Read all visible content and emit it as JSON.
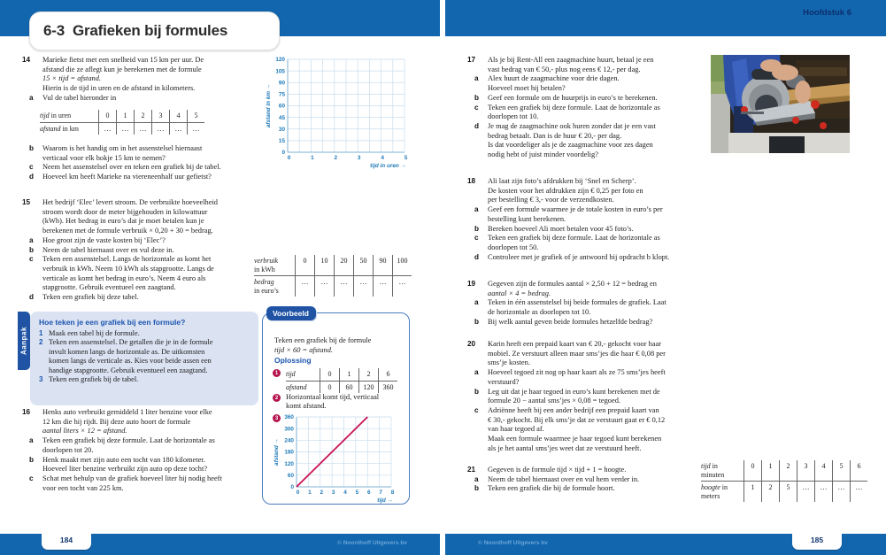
{
  "meta": {
    "chapter": "Hoofdstuk 6",
    "section_number": "6-3",
    "section_title": "Grafieken bij formules",
    "copyright": "© Noordhoff Uitgevers bv",
    "page_left": "184",
    "page_right": "185"
  },
  "problems": {
    "p14a": {
      "rows": [
        [
          "14",
          "Marieke fietst met een snelheid van 15 km per uur. De"
        ],
        [
          "",
          "afstand die ze aflegt kun je berekenen met de formule"
        ],
        [
          "",
          "15 × tijd = afstand.",
          1
        ],
        [
          "",
          "Hierin is de tijd in uren en de afstand in kilometers."
        ],
        [
          "a",
          "Vul de tabel hieronder in"
        ]
      ]
    },
    "p14b": {
      "rows": [
        [
          "b",
          "Waarom is het handig om in het assenstelsel hiernaast"
        ],
        [
          "",
          "verticaal voor elk hokje 15 km te nemen?"
        ],
        [
          "c",
          "Neem het assenstelsel over en teken een grafiek bij de tabel."
        ],
        [
          "d",
          "Hoeveel km heeft Marieke na viereneenhalf uur gefietst?"
        ]
      ]
    },
    "p15": {
      "rows": [
        [
          "15",
          "Het bedrijf ‘Elec’ levert stroom. De verbruikte hoeveelheid"
        ],
        [
          "",
          "stroom wordt door de meter bijgehouden in kilowattuur"
        ],
        [
          "",
          "(kWh). Het bedrag in euro’s dat je moet betalen kun je"
        ],
        [
          "",
          "berekenen met de formule verbruik × 0,20 + 30 = bedrag."
        ],
        [
          "a",
          "Hoe groot zijn de vaste kosten bij ‘Elec’?"
        ],
        [
          "b",
          "Neem de tabel hiernaast over en vul deze in."
        ],
        [
          "c",
          "Teken een assenstelsel. Langs de horizontale as komt het"
        ],
        [
          "",
          "verbruik in kWh. Neem 10 kWh als stapgrootte. Langs de"
        ],
        [
          "",
          "verticale as komt het bedrag in euro’s. Neem 4 euro als"
        ],
        [
          "",
          "stapgrootte. Gebruik eventueel een zaagtand."
        ],
        [
          "d",
          "Teken een grafiek bij deze tabel."
        ]
      ]
    },
    "p16": {
      "rows": [
        [
          "16",
          "Henks auto verbruikt gemiddeld 1 liter benzine voor elke"
        ],
        [
          "",
          "12 km die hij rijdt. Bij deze auto hoort de formule"
        ],
        [
          "",
          "aantal liters × 12 = afstand.",
          1
        ],
        [
          "a",
          "Teken een grafiek bij deze formule. Laat de horizontale as"
        ],
        [
          "",
          "doorlopen tot 20."
        ],
        [
          "b",
          "Henk maakt met zijn auto een tocht van 180 kilometer."
        ],
        [
          "",
          "Hoeveel liter benzine verbruikt zijn auto op deze tocht?"
        ],
        [
          "c",
          "Schat met behulp van de grafiek hoeveel liter hij nodig heeft"
        ],
        [
          "",
          "voor een tocht van 225 km."
        ]
      ]
    },
    "p17": {
      "rows": [
        [
          "17",
          "Als je bij Rent-All een zaagmachine huurt, betaal je een"
        ],
        [
          "",
          "vast bedrag van € 50,- plus nog eens € 12,- per dag."
        ],
        [
          "a",
          "Alex huurt de zaagmachine voor drie dagen."
        ],
        [
          "",
          "Hoeveel moet hij betalen?"
        ],
        [
          "b",
          "Geef een formule om de huurprijs in euro’s te berekenen."
        ],
        [
          "c",
          "Teken een grafiek bij deze formule. Laat de horizontale as"
        ],
        [
          "",
          "doorlopen tot 10."
        ],
        [
          "d",
          "Je mag de zaagmachine ook huren zonder dat je een vast"
        ],
        [
          "",
          "bedrag betaalt. Dan is de huur € 20,- per dag."
        ],
        [
          "",
          "Is dat voordeliger als je de zaagmachine voor zes dagen"
        ],
        [
          "",
          "nodig hebt of juist minder voordelig?"
        ]
      ]
    },
    "p18": {
      "rows": [
        [
          "18",
          "Ali laat zijn foto’s afdrukken bij ‘Snel en Scherp’."
        ],
        [
          "",
          "De kosten voor het afdrukken zijn € 0,25 per foto en"
        ],
        [
          "",
          "per bestelling € 3,- voor de verzendkosten."
        ],
        [
          "a",
          "Geef een formule waarmee je de totale kosten in euro’s per"
        ],
        [
          "",
          "bestelling kunt berekenen."
        ],
        [
          "b",
          "Bereken hoeveel Ali moet betalen voor 45 foto’s."
        ],
        [
          "c",
          "Teken een grafiek bij deze formule. Laat de horizontale as"
        ],
        [
          "",
          "doorlopen tot 50."
        ],
        [
          "d",
          "Controleer met je grafiek of je antwoord bij opdracht b klopt."
        ]
      ]
    },
    "p19": {
      "rows": [
        [
          "19",
          "Gegeven zijn de formules aantal × 2,50 + 12 = bedrag en"
        ],
        [
          "",
          "aantal × 4 = bedrag.",
          1
        ],
        [
          "a",
          "Teken in één assenstelsel bij beide formules de grafiek. Laat"
        ],
        [
          "",
          "de horizontale as doorlopen tot 10."
        ],
        [
          "b",
          "Bij welk aantal geven beide formules hetzelfde bedrag?"
        ]
      ]
    },
    "p20": {
      "rows": [
        [
          "20",
          "Karin heeft een prepaid kaart van € 20,- gekocht voor haar"
        ],
        [
          "",
          "mobiel. Ze verstuurt alleen maar sms’jes die haar € 0,08 per"
        ],
        [
          "",
          "sms’je kosten."
        ],
        [
          "a",
          "Hoeveel tegoed zit nog op haar kaart als ze 75 sms’jes heeft"
        ],
        [
          "",
          "verstuurd?"
        ],
        [
          "b",
          "Leg uit dat je haar tegoed in euro’s kunt berekenen met de"
        ],
        [
          "",
          "formule 20 − aantal sms’jes × 0,08 = tegoed."
        ],
        [
          "c",
          "Adriënne heeft bij een ander bedrijf een prepaid kaart van"
        ],
        [
          "",
          "€ 30,- gekocht. Bij elk sms’je dat ze verstuurt gaat er € 0,12"
        ],
        [
          "",
          "van haar tegoed af."
        ],
        [
          "",
          "Maak een formule waarmee je haar tegoed kunt berekenen"
        ],
        [
          "",
          "als je het aantal sms’jes weet dat ze verstuurd heeft."
        ]
      ]
    },
    "p21": {
      "rows": [
        [
          "21",
          "Gegeven is de formule tijd × tijd + 1 = hoogte."
        ],
        [
          "a",
          "Neem de tabel hiernaast over en vul hem verder in."
        ],
        [
          "b",
          "Teken een grafiek die bij de formule hoort."
        ]
      ]
    }
  },
  "tables": {
    "t14": {
      "rows": [
        {
          "label": [
            {
              "i": "tijd",
              "r": " in uren"
            }
          ],
          "cells": [
            "0",
            "1",
            "2",
            "3",
            "4",
            "5"
          ]
        },
        {
          "label": [
            {
              "i": "afstand",
              "r": " in km"
            }
          ],
          "cells": [
            "…",
            "…",
            "…",
            "…",
            "…",
            "…"
          ]
        }
      ]
    },
    "t15": {
      "rows": [
        {
          "label": [
            {
              "i": "verbruik"
            },
            {
              "r": "in kWh"
            }
          ],
          "cells": [
            "0",
            "10",
            "20",
            "50",
            "90",
            "100"
          ]
        },
        {
          "label": [
            {
              "i": "bedrag"
            },
            {
              "r": "in euro’s"
            }
          ],
          "cells": [
            "…",
            "…",
            "…",
            "…",
            "…",
            "…"
          ]
        }
      ]
    },
    "t21": {
      "rows": [
        {
          "label": [
            {
              "i": "tijd",
              "r": " in"
            },
            {
              "r": "minuten"
            }
          ],
          "cells": [
            "0",
            "1",
            "2",
            "3",
            "4",
            "5",
            "6"
          ]
        },
        {
          "label": [
            {
              "i": "hoogte",
              "r": " in"
            },
            {
              "r": "meters"
            }
          ],
          "cells": [
            "1",
            "2",
            "5",
            "…",
            "…",
            "…",
            "…"
          ]
        }
      ]
    },
    "tvb": {
      "rows": [
        {
          "label": [
            {
              "i": "tijd"
            }
          ],
          "cells": [
            "0",
            "1",
            "2",
            "6"
          ]
        },
        {
          "label": [
            {
              "i": "afstand"
            }
          ],
          "cells": [
            "0",
            "60",
            "120",
            "360"
          ]
        }
      ]
    }
  },
  "aanpak": {
    "tab": "Aanpak",
    "heading": "Hoe teken je een grafiek bij een formule?",
    "steps": [
      {
        "n": "1",
        "lines": [
          "Maak een tabel bij de formule."
        ]
      },
      {
        "n": "2",
        "lines": [
          "Teken een assenstelsel. De getallen die je in de formule",
          "invult komen langs de horizontale as. De uitkomsten",
          "komen langs de verticale as. Kies voor beide assen een",
          "handige stapgrootte. Gebruik eventueel een zaagtand."
        ]
      },
      {
        "n": "3",
        "lines": [
          "Teken een grafiek bij de tabel."
        ]
      }
    ]
  },
  "voorbeeld": {
    "tab": "Voorbeeld",
    "intro": [
      "Teken een grafiek bij de formule",
      "tijd × 60 = afstand."
    ],
    "solution": "Oplossing",
    "step1_num": "1",
    "step2_num": "2",
    "step3_num": "3",
    "step2_lines": [
      "Horizontaal komt tijd, verticaal",
      "komt afstand."
    ]
  },
  "chart_data": [
    {
      "id": "main",
      "type": "grid",
      "xlabel": "tijd in uren →",
      "ylabel": "afstand in km →",
      "xticks": [
        0,
        1,
        2,
        3,
        4,
        5
      ],
      "yticks": [
        0,
        15,
        30,
        45,
        60,
        75,
        90,
        105,
        120
      ],
      "xlim": [
        0,
        5
      ],
      "ylim": [
        0,
        120
      ],
      "x_minor_step": 0.5,
      "grid": true,
      "series": []
    },
    {
      "id": "voorbeeld",
      "type": "line",
      "xlabel": "tijd →",
      "ylabel": "afstand →",
      "xticks": [
        0,
        1,
        2,
        3,
        4,
        5,
        6,
        7,
        8
      ],
      "yticks": [
        0,
        60,
        120,
        180,
        240,
        300,
        360
      ],
      "xlim": [
        0,
        8
      ],
      "ylim": [
        0,
        360
      ],
      "x_minor_step": 1,
      "grid": true,
      "series": [
        {
          "name": "afstand = tijd × 60",
          "x": [
            0,
            6
          ],
          "y": [
            0,
            360
          ],
          "color": "#cb1154"
        }
      ]
    }
  ],
  "colors": {
    "band_blue": "#1266ae",
    "accent_blue": "#2053a4",
    "tick_blue": "#1d7ab9",
    "grid_blue": "#c8ddee",
    "axis_blue": "#7fb0d4",
    "crimson": "#b5134e",
    "line_red": "#cb1154",
    "navy": "#0c2f6d",
    "panel_bg": "#dbe2f2",
    "copyright_blue": "#6aa5d8"
  }
}
